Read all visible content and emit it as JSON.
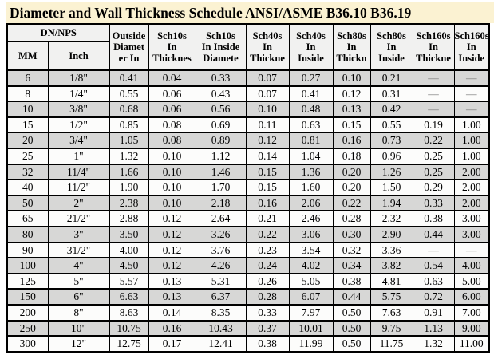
{
  "title": "Diameter and Wall Thickness Schedule ANSI/ASME B36.10 B36.19",
  "colors": {
    "title_band_background": "#FBF2D2",
    "header_cell_background": "#F1F1F0",
    "row_gray_background": "#D7D7D6",
    "row_light_background": "#FCFCFB",
    "border": "#000000",
    "dash_text": "#7d7d7d"
  },
  "table": {
    "group_header": "DN/NPS",
    "sub_headers": [
      "MM",
      "Inch"
    ],
    "columns": [
      "Outside\nDiamet\ner In",
      "Sch10s\nIn\nThicknes",
      "Sch10s\nIn Inside\nDiamete",
      "Sch40s\nIn\nThickne",
      "Sch40s\nIn\nInside",
      "Sch80s\nIn\nThickn",
      "Sch80s\nIn\nInside",
      "Sch160s\nIn\nThickne",
      "Sch160s\nIn\nInside"
    ],
    "rows": [
      [
        "6",
        "1/8\"",
        "0.41",
        "0.04",
        "0.33",
        "0.07",
        "0.27",
        "0.10",
        "0.21",
        "—",
        "—"
      ],
      [
        "8",
        "1/4\"",
        "0.55",
        "0.06",
        "0.43",
        "0.07",
        "0.41",
        "0.12",
        "0.31",
        "—",
        "—"
      ],
      [
        "10",
        "3/8\"",
        "0.68",
        "0.06",
        "0.56",
        "0.10",
        "0.48",
        "0.13",
        "0.42",
        "—",
        "—"
      ],
      [
        "15",
        "1/2\"",
        "0.85",
        "0.08",
        "0.69",
        "0.11",
        "0.63",
        "0.15",
        "0.55",
        "0.19",
        "1.00"
      ],
      [
        "20",
        "3/4\"",
        "1.05",
        "0.08",
        "0.89",
        "0.12",
        "0.81",
        "0.16",
        "0.73",
        "0.22",
        "1.00"
      ],
      [
        "25",
        "1\"",
        "1.32",
        "0.10",
        "1.12",
        "0.14",
        "1.04",
        "0.18",
        "0.96",
        "0.25",
        "1.00"
      ],
      [
        "32",
        "11/4\"",
        "1.66",
        "0.10",
        "1.46",
        "0.15",
        "1.36",
        "0.20",
        "1.26",
        "0.25",
        "2.00"
      ],
      [
        "40",
        "11/2\"",
        "1.90",
        "0.10",
        "1.70",
        "0.15",
        "1.60",
        "0.20",
        "1.50",
        "0.29",
        "2.00"
      ],
      [
        "50",
        "2\"",
        "2.38",
        "0.10",
        "2.18",
        "0.16",
        "2.06",
        "0.22",
        "1.94",
        "0.33",
        "2.00"
      ],
      [
        "65",
        "21/2\"",
        "2.88",
        "0.12",
        "2.64",
        "0.21",
        "2.46",
        "0.28",
        "2.32",
        "0.38",
        "3.00"
      ],
      [
        "80",
        "3\"",
        "3.50",
        "0.12",
        "3.26",
        "0.22",
        "3.06",
        "0.30",
        "2.90",
        "0.44",
        "3.00"
      ],
      [
        "90",
        "31/2\"",
        "4.00",
        "0.12",
        "3.76",
        "0.23",
        "3.54",
        "0.32",
        "3.36",
        "—",
        "—"
      ],
      [
        "100",
        "4\"",
        "4.50",
        "0.12",
        "4.26",
        "0.24",
        "4.02",
        "0.34",
        "3.82",
        "0.54",
        "4.00"
      ],
      [
        "125",
        "5\"",
        "5.57",
        "0.13",
        "5.31",
        "0.26",
        "5.05",
        "0.38",
        "4.81",
        "0.63",
        "5.00"
      ],
      [
        "150",
        "6\"",
        "6.63",
        "0.13",
        "6.37",
        "0.28",
        "6.07",
        "0.44",
        "5.75",
        "0.72",
        "6.00"
      ],
      [
        "200",
        "8\"",
        "8.63",
        "0.14",
        "8.35",
        "0.33",
        "7.97",
        "0.50",
        "7.63",
        "0.91",
        "7.00"
      ],
      [
        "250",
        "10\"",
        "10.75",
        "0.16",
        "10.43",
        "0.37",
        "10.01",
        "0.50",
        "9.75",
        "1.13",
        "9.00"
      ],
      [
        "300",
        "12\"",
        "12.75",
        "0.17",
        "12.41",
        "0.38",
        "11.99",
        "0.50",
        "11.75",
        "1.32",
        "11.00"
      ]
    ]
  }
}
